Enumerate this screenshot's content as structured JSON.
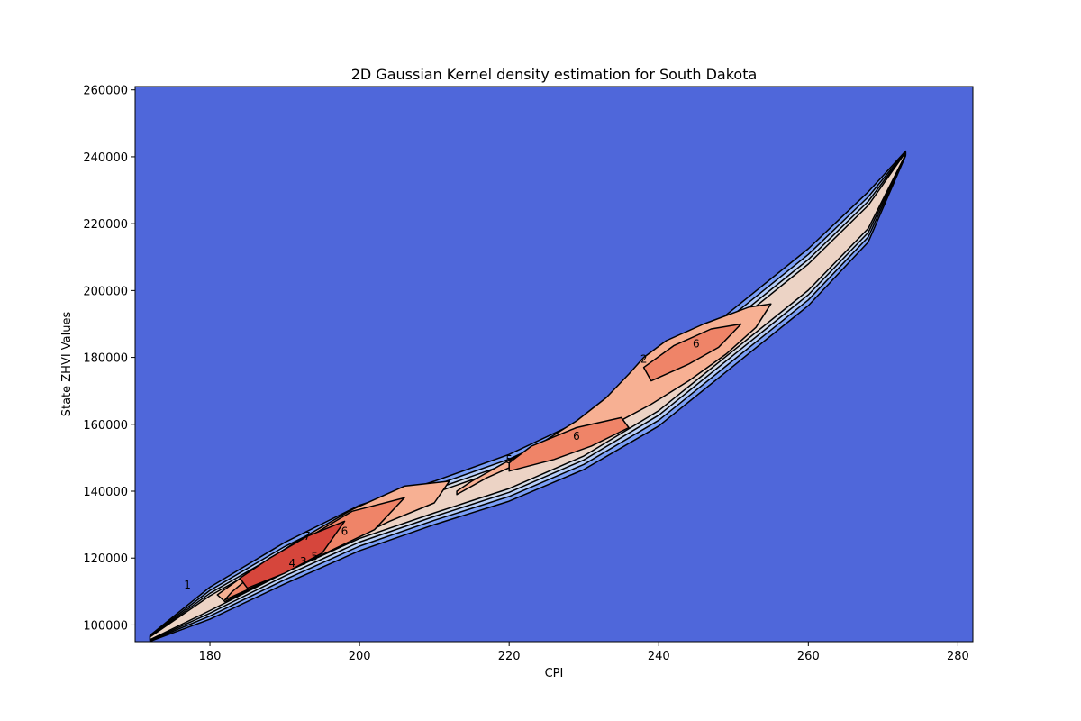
{
  "chart_data": {
    "type": "contour",
    "title": "2D Gaussian Kernel density estimation for South Dakota",
    "xlabel": "CPI",
    "ylabel": "State ZHVI Values",
    "xlim": [
      170,
      282
    ],
    "ylim": [
      95000,
      261000
    ],
    "xticks": [
      180,
      200,
      220,
      240,
      260,
      280
    ],
    "yticks": [
      100000,
      120000,
      140000,
      160000,
      180000,
      200000,
      220000,
      240000,
      260000
    ],
    "grid": false,
    "colormap": "coolwarm",
    "level_colors": [
      "#4f67da",
      "#7b9ff7",
      "#b5cdfa",
      "#d4dbe6",
      "#ecd3c5",
      "#f7b093",
      "#ef8468",
      "#d6463c"
    ],
    "path": [
      {
        "x": 172,
        "y": 96000,
        "w": 900
      },
      {
        "x": 180,
        "y": 106500,
        "w": 4800
      },
      {
        "x": 190,
        "y": 118500,
        "w": 6200
      },
      {
        "x": 200,
        "y": 129000,
        "w": 6800
      },
      {
        "x": 210,
        "y": 136500,
        "w": 6500
      },
      {
        "x": 220,
        "y": 144000,
        "w": 7000
      },
      {
        "x": 230,
        "y": 154000,
        "w": 7500
      },
      {
        "x": 240,
        "y": 168000,
        "w": 8500
      },
      {
        "x": 250,
        "y": 186000,
        "w": 8500
      },
      {
        "x": 260,
        "y": 204000,
        "w": 8500
      },
      {
        "x": 268,
        "y": 222000,
        "w": 7500
      },
      {
        "x": 273,
        "y": 241000,
        "w": 700
      }
    ],
    "regions": [
      {
        "level": 5,
        "points": [
          [
            213,
            139000
          ],
          [
            217,
            144000
          ],
          [
            222,
            149000
          ],
          [
            228,
            154000
          ],
          [
            234,
            160000
          ],
          [
            239,
            166000
          ],
          [
            244,
            173000
          ],
          [
            249,
            181000
          ],
          [
            253,
            189000
          ],
          [
            255,
            196000
          ],
          [
            252,
            195000
          ],
          [
            246,
            190000
          ],
          [
            241,
            185000
          ],
          [
            238,
            180000
          ],
          [
            236,
            175000
          ],
          [
            233,
            168000
          ],
          [
            229,
            161000
          ],
          [
            224,
            154000
          ],
          [
            219,
            148000
          ],
          [
            215,
            143000
          ],
          [
            213,
            140000
          ]
        ]
      },
      {
        "level": 5,
        "points": [
          [
            182,
            107000
          ],
          [
            189,
            114500
          ],
          [
            197,
            123500
          ],
          [
            204,
            131000
          ],
          [
            210,
            136500
          ],
          [
            212,
            143000
          ],
          [
            206,
            141500
          ],
          [
            199,
            134500
          ],
          [
            192,
            125500
          ],
          [
            185,
            115500
          ],
          [
            181,
            109000
          ]
        ]
      },
      {
        "level": 6,
        "points": [
          [
            182,
            107500
          ],
          [
            188,
            113500
          ],
          [
            195,
            121000
          ],
          [
            202,
            128500
          ],
          [
            206,
            138000
          ],
          [
            199,
            134000
          ],
          [
            193,
            126000
          ],
          [
            187,
            117500
          ],
          [
            183,
            110000
          ]
        ]
      },
      {
        "level": 6,
        "points": [
          [
            220,
            146000
          ],
          [
            226,
            149500
          ],
          [
            231,
            153500
          ],
          [
            236,
            159000
          ],
          [
            235,
            162000
          ],
          [
            229,
            159000
          ],
          [
            223,
            153500
          ],
          [
            220,
            148500
          ]
        ]
      },
      {
        "level": 6,
        "points": [
          [
            239,
            173000
          ],
          [
            244,
            178000
          ],
          [
            248,
            183000
          ],
          [
            251,
            190000
          ],
          [
            247,
            188500
          ],
          [
            242,
            183500
          ],
          [
            238,
            177000
          ]
        ]
      },
      {
        "level": 7,
        "points": [
          [
            185,
            111000
          ],
          [
            190,
            115500
          ],
          [
            195,
            121500
          ],
          [
            198,
            131000
          ],
          [
            193,
            126500
          ],
          [
            188,
            120000
          ],
          [
            184,
            114000
          ]
        ]
      }
    ],
    "contour_labels": [
      {
        "text": "1",
        "x": 177,
        "y": 112000
      },
      {
        "text": "7",
        "x": 193,
        "y": 126500
      },
      {
        "text": "6",
        "x": 198,
        "y": 128000
      },
      {
        "text": "5",
        "x": 194,
        "y": 120500
      },
      {
        "text": "4",
        "x": 191,
        "y": 118500
      },
      {
        "text": "3",
        "x": 192.5,
        "y": 119000
      },
      {
        "text": "5",
        "x": 220,
        "y": 149500
      },
      {
        "text": "6",
        "x": 229,
        "y": 156500
      },
      {
        "text": "6",
        "x": 245,
        "y": 184000
      },
      {
        "text": "2",
        "x": 238,
        "y": 179500
      }
    ]
  }
}
